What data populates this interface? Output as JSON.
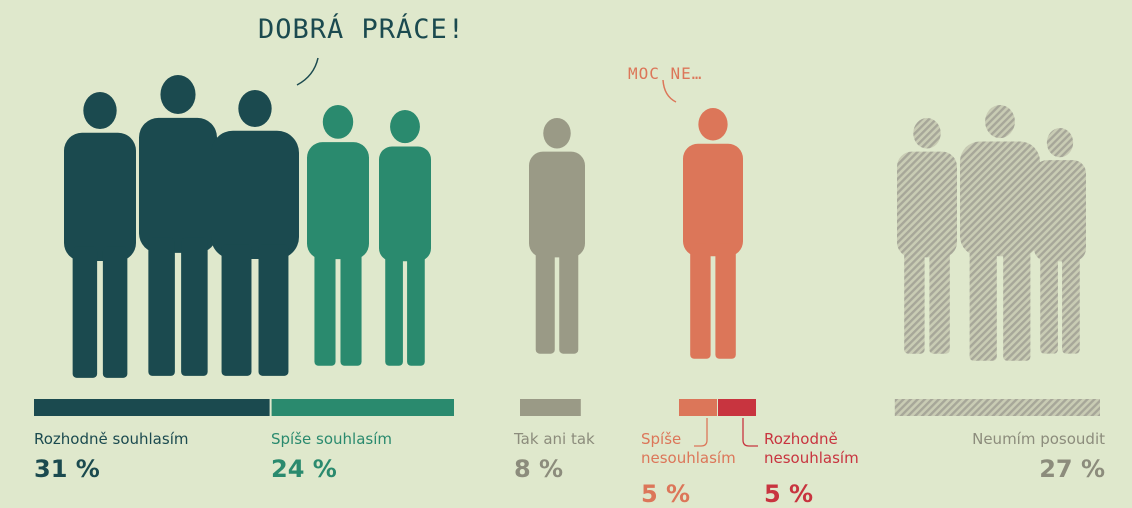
{
  "chart_data": {
    "type": "bar",
    "categories": [
      "Rozhodně souhlasím",
      "Spíše souhlasím",
      "Tak ani tak",
      "Spíše nesouhlasím",
      "Rozhodně nesouhlasím",
      "Neumím posoudit"
    ],
    "values": [
      31,
      24,
      8,
      5,
      5,
      27
    ],
    "value_labels": [
      "31 %",
      "24 %",
      "8 %",
      "5 %",
      "5 %",
      "27 %"
    ],
    "colors": [
      "#1b4a4f",
      "#2a8a6e",
      "#9a9a86",
      "#dc7659",
      "#c8343f",
      "#a7a799"
    ],
    "hatched": [
      false,
      false,
      false,
      false,
      false,
      true
    ],
    "annotations": [
      {
        "text": "DOBRÁ PRÁCE!",
        "color": "#1b4a4f"
      },
      {
        "text": "MOC NE…",
        "color": "#dc7659"
      }
    ]
  }
}
